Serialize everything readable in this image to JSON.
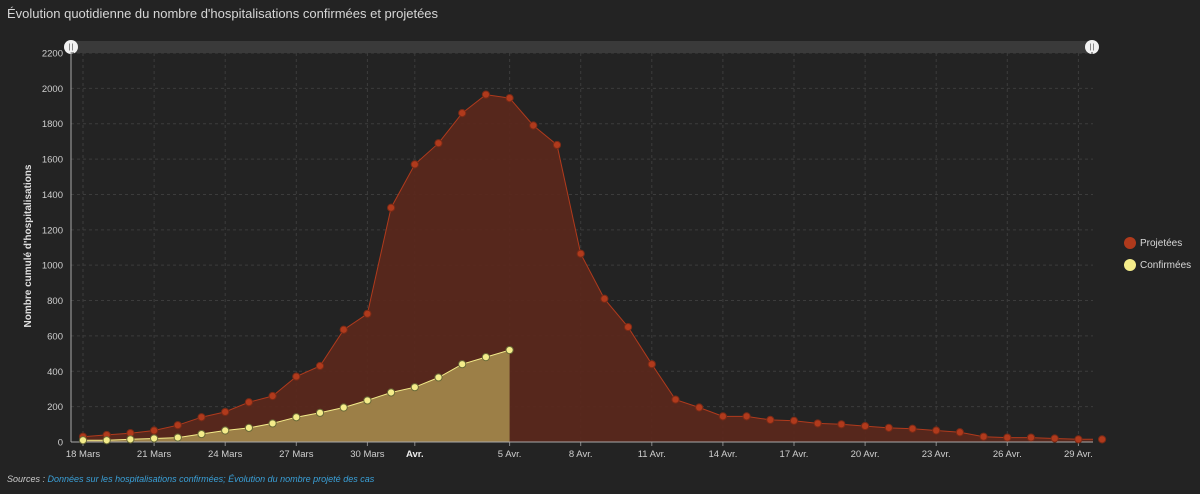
{
  "title": "Évolution quotidienne du nombre d'hospitalisations confirmées et projetées",
  "source": {
    "prefix": "Sources : ",
    "links": "Données sur les hospitalisations confirmées; Évolution du nombre projeté des cas"
  },
  "colors": {
    "projected": "#b03a1c",
    "projected_fill": "#5a281c",
    "confirmed": "#f4ec8a",
    "confirmed_fill": "#a0844a"
  },
  "chart_data": {
    "type": "area",
    "title": "Évolution quotidienne du nombre d'hospitalisations confirmées et projetées",
    "xlabel": "",
    "ylabel": "Nombre cumulé d'hospitalisations",
    "ylim": [
      0,
      2200
    ],
    "yticks": [
      0,
      200,
      400,
      600,
      800,
      1000,
      1200,
      1400,
      1600,
      1800,
      2000,
      2200
    ],
    "grid": true,
    "legend_position": "right",
    "xticks": [
      {
        "day": 0,
        "label": "18 Mars",
        "bold": false
      },
      {
        "day": 3,
        "label": "21 Mars",
        "bold": false
      },
      {
        "day": 6,
        "label": "24 Mars",
        "bold": false
      },
      {
        "day": 9,
        "label": "27 Mars",
        "bold": false
      },
      {
        "day": 12,
        "label": "30 Mars",
        "bold": false
      },
      {
        "day": 14,
        "label": "Avr.",
        "bold": true
      },
      {
        "day": 18,
        "label": "5 Avr.",
        "bold": false
      },
      {
        "day": 21,
        "label": "8 Avr.",
        "bold": false
      },
      {
        "day": 24,
        "label": "11 Avr.",
        "bold": false
      },
      {
        "day": 27,
        "label": "14 Avr.",
        "bold": false
      },
      {
        "day": 30,
        "label": "17 Avr.",
        "bold": false
      },
      {
        "day": 33,
        "label": "20 Avr.",
        "bold": false
      },
      {
        "day": 36,
        "label": "23 Avr.",
        "bold": false
      },
      {
        "day": 39,
        "label": "26 Avr.",
        "bold": false
      },
      {
        "day": 42,
        "label": "29 Avr.",
        "bold": false
      }
    ],
    "series": [
      {
        "name": "Projetées",
        "start_day": 0,
        "values": [
          30,
          40,
          50,
          65,
          95,
          140,
          170,
          225,
          260,
          370,
          430,
          635,
          725,
          1325,
          1570,
          1690,
          1860,
          1965,
          1945,
          1790,
          1680,
          1065,
          810,
          650,
          440,
          240,
          195,
          145,
          145,
          125,
          120,
          105,
          100,
          90,
          80,
          75,
          65,
          55,
          30,
          25,
          25,
          20,
          15,
          15
        ]
      },
      {
        "name": "Confirmées",
        "start_day": 0,
        "values": [
          10,
          10,
          15,
          20,
          25,
          45,
          65,
          80,
          105,
          140,
          165,
          195,
          235,
          280,
          310,
          365,
          440,
          480,
          520
        ]
      }
    ]
  }
}
